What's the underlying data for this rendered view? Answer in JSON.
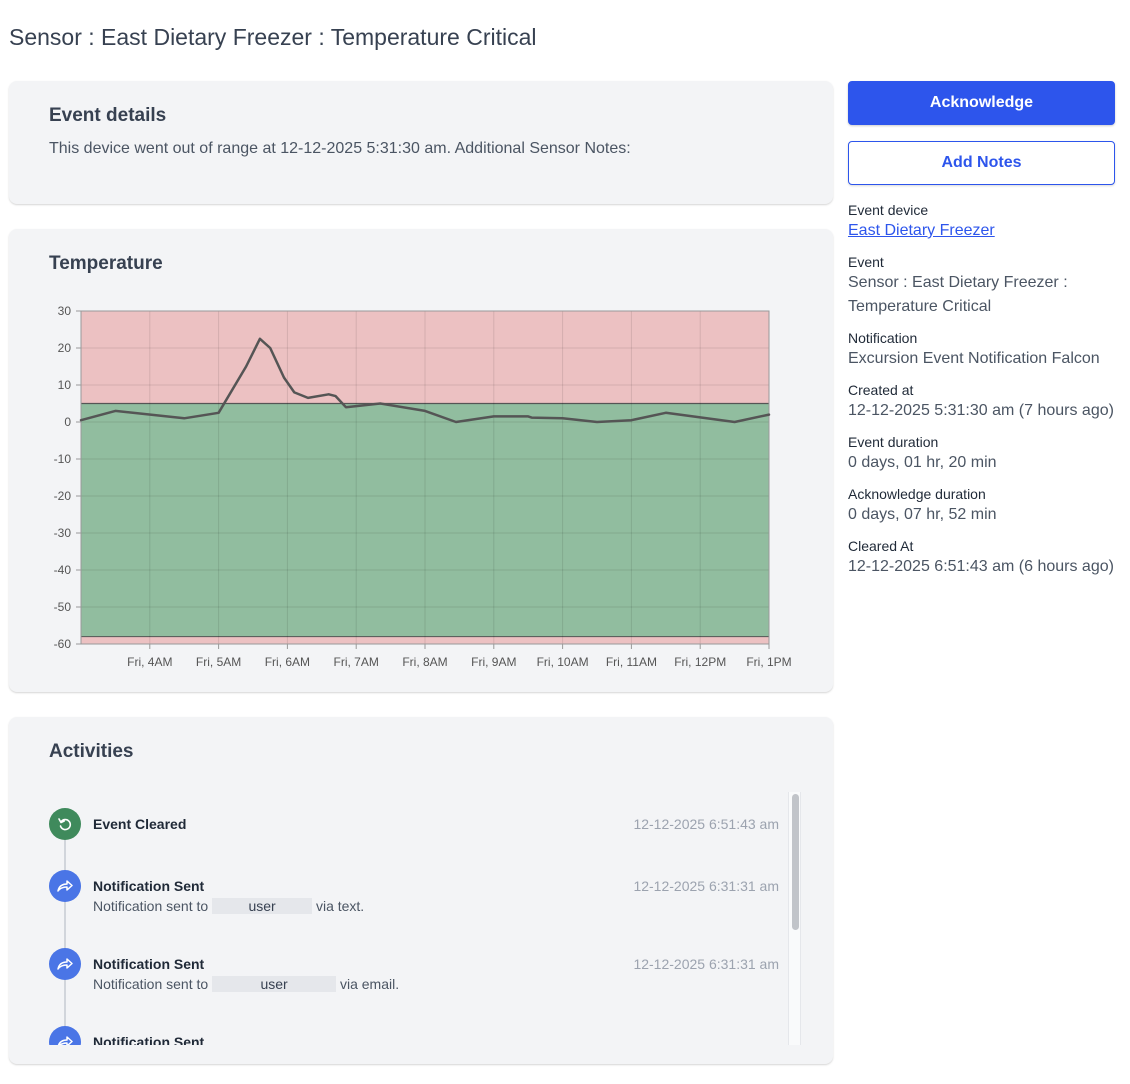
{
  "page": {
    "title": "Sensor : East Dietary Freezer : Temperature Critical"
  },
  "details": {
    "heading": "Event details",
    "text": "This device went out of range at 12-12-2025 5:31:30 am. Additional Sensor Notes:"
  },
  "temperature": {
    "heading": "Temperature"
  },
  "chart_data": {
    "type": "line",
    "y_ticks": [
      "30",
      "20",
      "10",
      "0",
      "-10",
      "-20",
      "-30",
      "-40",
      "-50",
      "-60"
    ],
    "x_ticks": [
      "Fri, 4AM",
      "Fri, 5AM",
      "Fri, 6AM",
      "Fri, 7AM",
      "Fri, 8AM",
      "Fri, 9AM",
      "Fri, 10AM",
      "Fri, 11AM",
      "Fri, 12PM",
      "Fri, 1PM"
    ],
    "ylim": [
      -60,
      30
    ],
    "x_range_hours": [
      3.0,
      13.0
    ],
    "bands": [
      {
        "from": 5,
        "to": 30,
        "color": "#ecc1c2",
        "label": "high-out-of-range"
      },
      {
        "from": -58,
        "to": 5,
        "color": "#91bd9f",
        "label": "in-range"
      },
      {
        "from": -60,
        "to": -58,
        "color": "#ecc1c2",
        "label": "low-out-of-range"
      }
    ],
    "line_color": "#555555",
    "grid": true,
    "series": [
      {
        "x": [
          3.0,
          3.5,
          4.5,
          5.0,
          5.4,
          5.6,
          5.75,
          5.95,
          6.1,
          6.3,
          6.6,
          6.7,
          6.85,
          7.35,
          8.0,
          8.45,
          9.0,
          9.5,
          9.55,
          10.0,
          10.5,
          11.0,
          11.5,
          12.5,
          13.0
        ],
        "y": [
          0.5,
          3,
          1,
          2.5,
          15,
          22.5,
          20,
          12,
          8,
          6.5,
          7.5,
          7,
          4,
          5,
          3,
          0,
          1.5,
          1.5,
          1.2,
          1,
          0,
          0.5,
          2.5,
          0,
          2
        ]
      }
    ]
  },
  "activities": {
    "heading": "Activities",
    "items": [
      {
        "icon": "undo-icon",
        "color": "#3f8a5c",
        "title": "Event Cleared",
        "sub_pre": "",
        "user": "",
        "sub_post": "",
        "time": "12-12-2025 6:51:43 am"
      },
      {
        "icon": "share-icon",
        "color": "#4a75e6",
        "title": "Notification Sent",
        "sub_pre": "Notification sent to",
        "user": "user",
        "sub_post": "via text.",
        "time": "12-12-2025 6:31:31 am"
      },
      {
        "icon": "share-icon",
        "color": "#4a75e6",
        "title": "Notification Sent",
        "sub_pre": "Notification sent to",
        "user": "user",
        "sub_post": "via email.",
        "time": "12-12-2025 6:31:31 am"
      },
      {
        "icon": "share-icon",
        "color": "#4a75e6",
        "title": "Notification Sent",
        "sub_pre": "",
        "user": "",
        "sub_post": "",
        "time": ""
      }
    ]
  },
  "actions": {
    "acknowledge": "Acknowledge",
    "add_notes": "Add Notes"
  },
  "sidebar": {
    "event_device_label": "Event device",
    "event_device_value": "East Dietary Freezer",
    "event_label": "Event",
    "event_value": "Sensor : East Dietary Freezer : Temperature Critical",
    "notification_label": "Notification",
    "notification_value": "Excursion Event Notification Falcon",
    "created_label": "Created at",
    "created_value": "12-12-2025 5:31:30 am (7 hours ago)",
    "duration_label": "Event duration",
    "duration_value": "0 days, 01 hr, 20 min",
    "ack_duration_label": "Acknowledge duration",
    "ack_duration_value": "0 days, 07 hr, 52 min",
    "cleared_label": "Cleared At",
    "cleared_value": "12-12-2025 6:51:43 am (6 hours ago)"
  }
}
